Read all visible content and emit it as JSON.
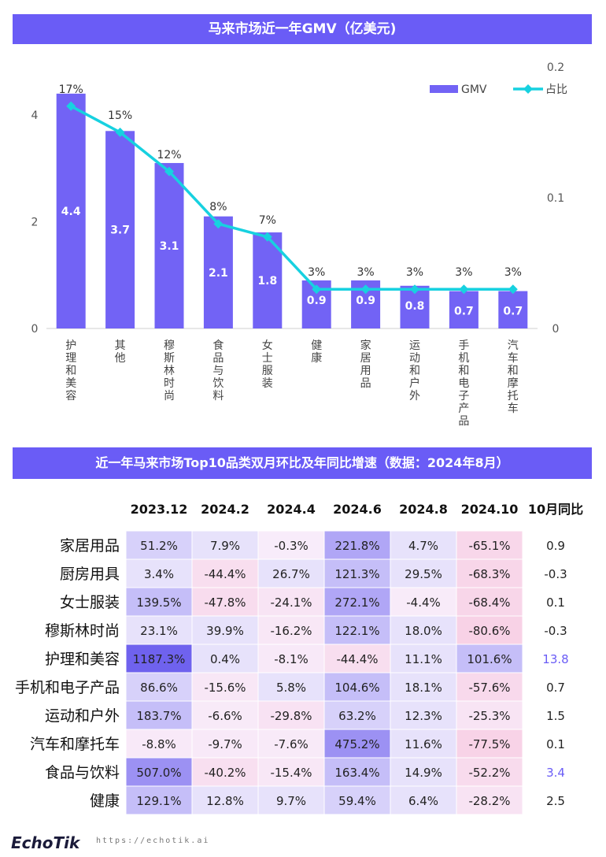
{
  "banner_top": "马来市场近一年GMV（亿美元)",
  "banner_table": "近一年马来市场Top10品类双月环比及年同比增速（数据：2024年8月）",
  "footer": {
    "logo": "EchoTik",
    "url": "https://echotik.ai"
  },
  "colors": {
    "banner": "#6a5cf6",
    "bar": "#7263f5",
    "line": "#17d1e0"
  },
  "chart_data": [
    {
      "type": "bar",
      "categories": [
        "护理和美容",
        "其他",
        "穆斯林时尚",
        "食品与饮料",
        "女士服装",
        "健康",
        "家居用品",
        "运动和户外",
        "手机和电子产品",
        "汽车和摩托车"
      ],
      "series": [
        {
          "name": "GMV",
          "type": "bar",
          "axis": "left",
          "values": [
            4.4,
            3.7,
            3.1,
            2.1,
            1.8,
            0.9,
            0.9,
            0.8,
            0.7,
            0.7
          ]
        },
        {
          "name": "占比",
          "type": "line",
          "axis": "right",
          "values": [
            0.17,
            0.15,
            0.12,
            0.08,
            0.07,
            0.03,
            0.03,
            0.03,
            0.03,
            0.03
          ]
        }
      ],
      "bar_labels": [
        "4.4",
        "3.7",
        "3.1",
        "2.1",
        "1.8",
        "0.9",
        "0.9",
        "0.8",
        "0.7",
        "0.7"
      ],
      "point_labels": [
        "17%",
        "15%",
        "12%",
        "8%",
        "7%",
        "3%",
        "3%",
        "3%",
        "3%",
        "3%"
      ],
      "y_left": {
        "ticks": [
          0,
          2,
          4
        ],
        "tick_labels": [
          "0",
          "2",
          "4"
        ],
        "lim": [
          0,
          4.9
        ]
      },
      "y_right": {
        "ticks": [
          0,
          0.1,
          0.2
        ],
        "tick_labels": [
          "0",
          "0.1",
          "0.2"
        ],
        "lim": [
          0,
          0.2
        ]
      },
      "legend_position": "top-right",
      "grid": false
    },
    {
      "type": "table",
      "columns": [
        "2023.12",
        "2024.2",
        "2024.4",
        "2024.6",
        "2024.8",
        "2024.10",
        "10月同比"
      ],
      "rows": [
        {
          "label": "家居用品",
          "cells": [
            "51.2%",
            "7.9%",
            "-0.3%",
            "221.8%",
            "4.7%",
            "-65.1%"
          ],
          "yoy": "0.9"
        },
        {
          "label": "厨房用具",
          "cells": [
            "3.4%",
            "-44.4%",
            "26.7%",
            "121.3%",
            "29.5%",
            "-68.3%"
          ],
          "yoy": "-0.3"
        },
        {
          "label": "女士服装",
          "cells": [
            "139.5%",
            "-47.8%",
            "-24.1%",
            "272.1%",
            "-4.4%",
            "-68.4%"
          ],
          "yoy": "0.1"
        },
        {
          "label": "穆斯林时尚",
          "cells": [
            "23.1%",
            "39.9%",
            "-16.2%",
            "122.1%",
            "18.0%",
            "-80.6%"
          ],
          "yoy": "-0.3"
        },
        {
          "label": "护理和美容",
          "cells": [
            "1187.3%",
            "0.4%",
            "-8.1%",
            "-44.4%",
            "11.1%",
            "101.6%"
          ],
          "yoy": "13.8"
        },
        {
          "label": "手机和电子产品",
          "cells": [
            "86.6%",
            "-15.6%",
            "5.8%",
            "104.6%",
            "18.1%",
            "-57.6%"
          ],
          "yoy": "0.7"
        },
        {
          "label": "运动和户外",
          "cells": [
            "183.7%",
            "-6.6%",
            "-29.8%",
            "63.2%",
            "12.3%",
            "-25.3%"
          ],
          "yoy": "1.5"
        },
        {
          "label": "汽车和摩托车",
          "cells": [
            "-8.8%",
            "-9.7%",
            "-7.6%",
            "475.2%",
            "11.6%",
            "-77.5%"
          ],
          "yoy": "0.1"
        },
        {
          "label": "食品与饮料",
          "cells": [
            "507.0%",
            "-40.2%",
            "-15.4%",
            "163.4%",
            "14.9%",
            "-52.2%"
          ],
          "yoy": "3.4"
        },
        {
          "label": "健康",
          "cells": [
            "129.1%",
            "12.8%",
            "9.7%",
            "59.4%",
            "6.4%",
            "-28.2%"
          ],
          "yoy": "2.5"
        }
      ],
      "highlight_yoy": [
        "13.8",
        "3.4"
      ],
      "highlight_color": "#6a5cf6"
    }
  ]
}
